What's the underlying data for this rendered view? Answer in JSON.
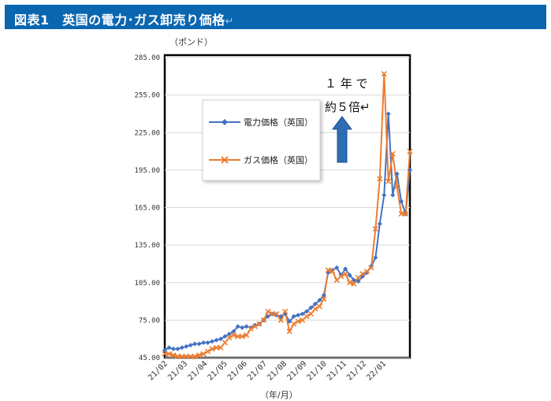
{
  "header": {
    "title": "図表1　英国の電力･ガス卸売り価格",
    "return_mark": "↵"
  },
  "chart_data": {
    "type": "line",
    "title": "",
    "ylabel": "（ポンド）",
    "xlabel": "（年/月）",
    "ylim": [
      45,
      285
    ],
    "yticks": [
      "285.00",
      "255.00",
      "225.00",
      "195.00",
      "165.00",
      "135.00",
      "105.00",
      "75.00",
      "45.00"
    ],
    "ytick_values": [
      285,
      255,
      225,
      195,
      165,
      135,
      105,
      75,
      45
    ],
    "xticks": [
      "21/02",
      "21/03",
      "21/04",
      "21/05",
      "21/06",
      "21/07",
      "21/08",
      "21/09",
      "21/10",
      "21/11",
      "21/12",
      "22/01"
    ],
    "grid": true,
    "legend_position": "upper-left inside",
    "series": [
      {
        "name": "電力価格（英国）",
        "color": "#4472c4",
        "marker": "diamond",
        "values": [
          51,
          53,
          52,
          52,
          53,
          54,
          55,
          56,
          56,
          57,
          57,
          58,
          59,
          60,
          62,
          64,
          66,
          70,
          69,
          70,
          69,
          71,
          72,
          75,
          78,
          80,
          79,
          78,
          80,
          74,
          78,
          79,
          80,
          82,
          85,
          88,
          91,
          95,
          113,
          115,
          117,
          111,
          116,
          111,
          107,
          106,
          110,
          113,
          118,
          125,
          152,
          175,
          240,
          175,
          192,
          170,
          160,
          195
        ]
      },
      {
        "name": "ガス価格（英国）",
        "color": "#ed7d31",
        "marker": "x",
        "values": [
          48,
          48,
          47,
          46,
          46,
          46,
          46,
          46,
          47,
          48,
          50,
          52,
          53,
          53,
          57,
          61,
          63,
          62,
          62,
          63,
          68,
          70,
          72,
          75,
          82,
          80,
          80,
          75,
          82,
          66,
          72,
          74,
          75,
          78,
          80,
          84,
          86,
          92,
          115,
          114,
          107,
          110,
          112,
          105,
          104,
          109,
          112,
          114,
          117,
          148,
          188,
          272,
          186,
          208,
          182,
          160,
          160,
          210
        ]
      }
    ],
    "annotations": [
      {
        "text": "１ 年 で"
      },
      {
        "text": "約５倍↵"
      }
    ],
    "arrow_color": "#2e6db4"
  }
}
